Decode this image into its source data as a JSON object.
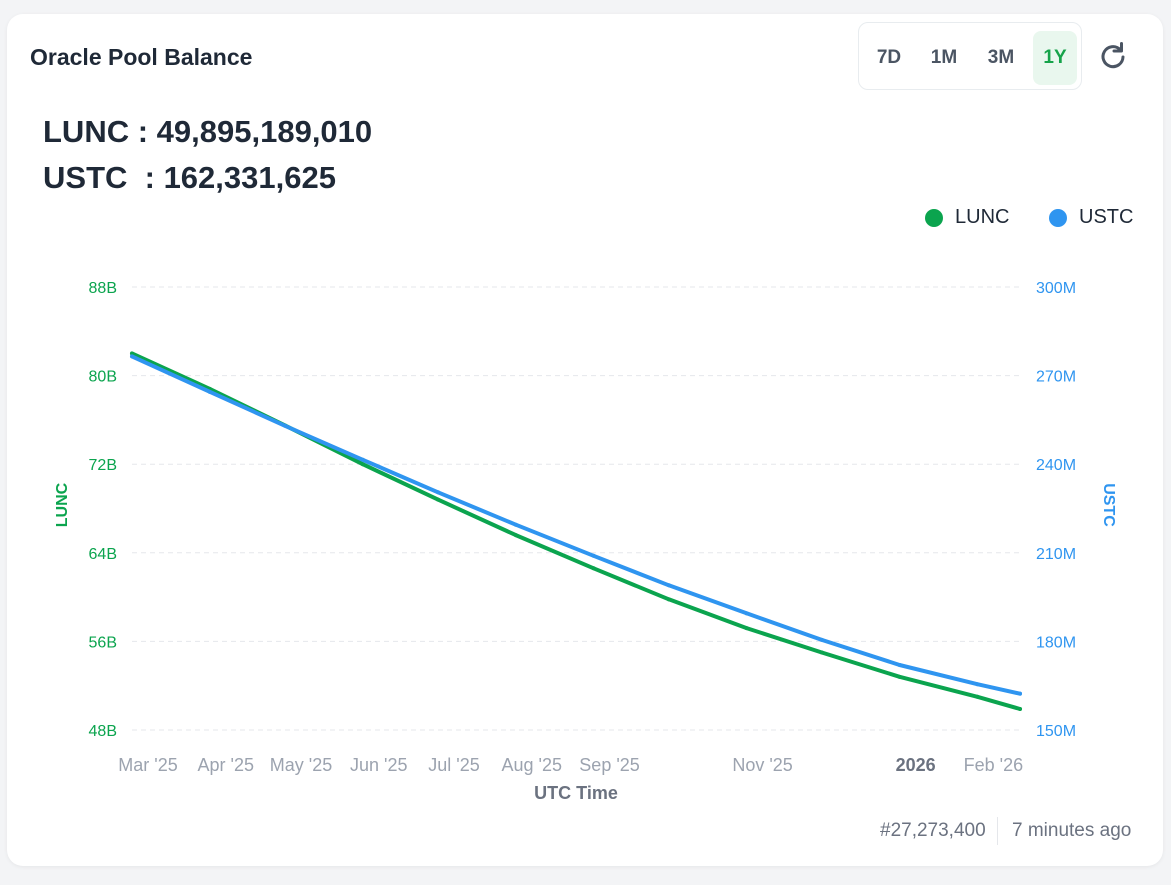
{
  "title": "Oracle Pool Balance",
  "ranges": [
    "7D",
    "1M",
    "3M",
    "1Y"
  ],
  "active_range": "1Y",
  "balances": {
    "lunc": {
      "label": "LUNC",
      "sep": " : ",
      "value": "49,895,189,010"
    },
    "ustc": {
      "label": "USTC",
      "sep": "  : ",
      "value": "162,331,625"
    }
  },
  "legend": [
    {
      "name": "LUNC",
      "color": "#0ba44e"
    },
    {
      "name": "USTC",
      "color": "#2f95f0"
    }
  ],
  "footer": {
    "block": "#27,273,400",
    "updated": "7 minutes ago"
  },
  "chart_data": {
    "type": "line",
    "xlabel": "UTC Time",
    "x_range": [
      "2025-03-01",
      "2026-02-18"
    ],
    "x_ticks": [
      {
        "date": "2025-03-01",
        "label": "Mar '25",
        "bold": false
      },
      {
        "date": "2025-04-01",
        "label": "Apr '25",
        "bold": false
      },
      {
        "date": "2025-05-01",
        "label": "May '25",
        "bold": false
      },
      {
        "date": "2025-06-01",
        "label": "Jun '25",
        "bold": false
      },
      {
        "date": "2025-07-01",
        "label": "Jul '25",
        "bold": false
      },
      {
        "date": "2025-08-01",
        "label": "Aug '25",
        "bold": false
      },
      {
        "date": "2025-09-01",
        "label": "Sep '25",
        "bold": false
      },
      {
        "date": "2025-11-01",
        "label": "Nov '25",
        "bold": false
      },
      {
        "date": "2026-01-01",
        "label": "2026",
        "bold": true
      },
      {
        "date": "2026-02-01",
        "label": "Feb '26",
        "bold": false
      }
    ],
    "y_left": {
      "label": "LUNC",
      "color": "#0ba44e",
      "min": 48,
      "max": 88,
      "ticks": [
        48,
        56,
        64,
        72,
        80,
        88
      ],
      "tick_labels": [
        "48B",
        "56B",
        "64B",
        "72B",
        "80B",
        "88B"
      ]
    },
    "y_right": {
      "label": "USTC",
      "color": "#2f95f0",
      "min": 150,
      "max": 300,
      "ticks": [
        150,
        180,
        210,
        240,
        270,
        300
      ],
      "tick_labels": [
        "150M",
        "180M",
        "210M",
        "240M",
        "270M",
        "300M"
      ]
    },
    "grid": true,
    "legend_position": "top-right",
    "series": [
      {
        "name": "LUNC",
        "axis": "left",
        "unit": "B",
        "color": "#0ba44e",
        "points": [
          [
            "2025-03-01",
            82.0
          ],
          [
            "2025-04-01",
            78.8
          ],
          [
            "2025-05-01",
            75.5
          ],
          [
            "2025-06-01",
            72.0
          ],
          [
            "2025-07-01",
            68.8
          ],
          [
            "2025-08-01",
            65.6
          ],
          [
            "2025-09-01",
            62.6
          ],
          [
            "2025-10-01",
            59.8
          ],
          [
            "2025-11-01",
            57.2
          ],
          [
            "2025-12-01",
            55.0
          ],
          [
            "2026-01-01",
            52.8
          ],
          [
            "2026-02-01",
            51.0
          ],
          [
            "2026-02-18",
            49.9
          ]
        ]
      },
      {
        "name": "USTC",
        "axis": "right",
        "unit": "M",
        "color": "#2f95f0",
        "points": [
          [
            "2025-03-01",
            276.5
          ],
          [
            "2025-04-01",
            264.5
          ],
          [
            "2025-05-01",
            253.0
          ],
          [
            "2025-06-01",
            241.5
          ],
          [
            "2025-07-01",
            230.5
          ],
          [
            "2025-08-01",
            219.5
          ],
          [
            "2025-09-01",
            209.0
          ],
          [
            "2025-10-01",
            199.0
          ],
          [
            "2025-11-01",
            189.5
          ],
          [
            "2025-12-01",
            180.5
          ],
          [
            "2026-01-01",
            172.0
          ],
          [
            "2026-02-01",
            165.5
          ],
          [
            "2026-02-18",
            162.3
          ]
        ]
      }
    ]
  }
}
